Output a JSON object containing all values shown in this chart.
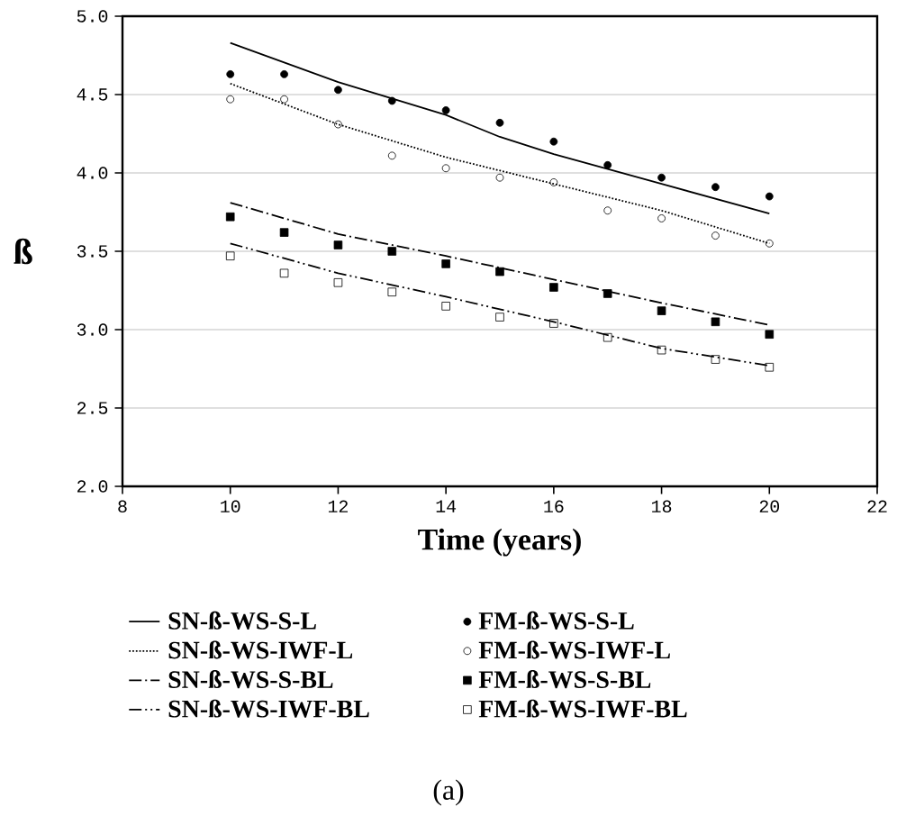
{
  "chart_data": {
    "type": "line",
    "xlabel": "Time (years)",
    "ylabel": "ß",
    "annotations": [
      "(a)"
    ],
    "xlim": [
      8,
      22
    ],
    "xticks": [
      8,
      10,
      12,
      14,
      16,
      18,
      20,
      22
    ],
    "ylim": [
      2,
      5
    ],
    "yticks": [
      {
        "value": 2,
        "label": "2.0"
      },
      {
        "value": 2.5,
        "label": "2.5"
      },
      {
        "value": 3,
        "label": "3.0"
      },
      {
        "value": 3.5,
        "label": "3.5"
      },
      {
        "value": 4,
        "label": "4.0"
      },
      {
        "value": 4.5,
        "label": "4.5"
      },
      {
        "value": 5,
        "label": "5.0"
      }
    ],
    "grid": "y",
    "legend": "bottom",
    "series": [
      {
        "name": "SN-ß-WS-S-L",
        "type": "line",
        "line_style": "solid",
        "marker": "none",
        "color": "#000000",
        "x": [
          10,
          12,
          14,
          15,
          16,
          18,
          20
        ],
        "values": [
          4.83,
          4.58,
          4.37,
          4.23,
          4.12,
          3.93,
          3.74
        ]
      },
      {
        "name": "SN-ß-WS-IWF-L",
        "type": "line",
        "line_style": "dotted",
        "marker": "none",
        "color": "#000000",
        "x": [
          10,
          12,
          14,
          16,
          18,
          20
        ],
        "values": [
          4.57,
          4.31,
          4.1,
          3.93,
          3.76,
          3.55
        ]
      },
      {
        "name": "SN-ß-WS-S-BL",
        "type": "line",
        "line_style": "dashdot",
        "marker": "none",
        "color": "#000000",
        "x": [
          10,
          12,
          14,
          16,
          18,
          20
        ],
        "values": [
          3.81,
          3.61,
          3.47,
          3.32,
          3.17,
          3.03
        ]
      },
      {
        "name": "SN-ß-WS-IWF-BL",
        "type": "line",
        "line_style": "dashdotdot",
        "marker": "none",
        "color": "#000000",
        "x": [
          10,
          12,
          14,
          16,
          18,
          20
        ],
        "values": [
          3.55,
          3.36,
          3.21,
          3.05,
          2.88,
          2.77
        ]
      },
      {
        "name": "FM-ß-WS-S-L",
        "type": "scatter",
        "marker": "circle",
        "color": "#000000",
        "x": [
          10,
          11,
          12,
          13,
          14,
          15,
          16,
          17,
          18,
          19,
          20
        ],
        "values": [
          4.63,
          4.63,
          4.53,
          4.46,
          4.4,
          4.32,
          4.2,
          4.05,
          3.97,
          3.91,
          3.85
        ]
      },
      {
        "name": "FM-ß-WS-IWF-L",
        "type": "scatter",
        "marker": "circle open",
        "color": "#000000",
        "x": [
          10,
          11,
          12,
          13,
          14,
          15,
          16,
          17,
          18,
          19,
          20
        ],
        "values": [
          4.47,
          4.47,
          4.31,
          4.11,
          4.03,
          3.97,
          3.94,
          3.76,
          3.71,
          3.6,
          3.55
        ]
      },
      {
        "name": "FM-ß-WS-S-BL",
        "type": "scatter",
        "marker": "square",
        "color": "#000000",
        "x": [
          10,
          11,
          12,
          13,
          14,
          15,
          16,
          17,
          18,
          19,
          20
        ],
        "values": [
          3.72,
          3.62,
          3.54,
          3.5,
          3.42,
          3.37,
          3.27,
          3.23,
          3.12,
          3.05,
          2.97
        ]
      },
      {
        "name": "FM-ß-WS-IWF-BL",
        "type": "scatter",
        "marker": "square open",
        "color": "#000000",
        "x": [
          10,
          11,
          12,
          13,
          14,
          15,
          16,
          17,
          18,
          19,
          20
        ],
        "values": [
          3.47,
          3.36,
          3.3,
          3.24,
          3.15,
          3.08,
          3.04,
          2.95,
          2.87,
          2.81,
          2.76
        ]
      }
    ]
  }
}
